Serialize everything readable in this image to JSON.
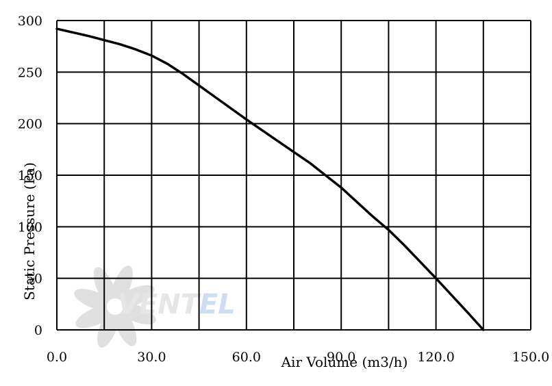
{
  "chart_data": {
    "type": "line",
    "title": "",
    "xlabel": "Air Volume (m3/h)",
    "ylabel": "Static Pressure (Pa)",
    "xlim": [
      0,
      150
    ],
    "ylim": [
      0,
      300
    ],
    "grid": true,
    "x_ticks": [
      "0.0",
      "30.0",
      "60.0",
      "90.0",
      "120.0",
      "150.0"
    ],
    "y_ticks": [
      "0",
      "50",
      "100",
      "150",
      "200",
      "250",
      "300"
    ],
    "series": [
      {
        "x": [
          0,
          10,
          20,
          25,
          30,
          35,
          40,
          50,
          60,
          70,
          80,
          90,
          100,
          105,
          110,
          120,
          130,
          135
        ],
        "y": [
          292,
          285,
          277,
          272,
          266,
          258,
          248,
          226,
          204,
          183,
          162,
          138,
          110,
          97,
          82,
          50,
          17,
          0
        ]
      }
    ],
    "line_color": "#000000"
  },
  "watermark": {
    "brand_left": "VENT",
    "brand_right": "EL",
    "color_left": "#d3d3d3",
    "color_right": "#a9c3e8",
    "icon": "fan-icon"
  }
}
